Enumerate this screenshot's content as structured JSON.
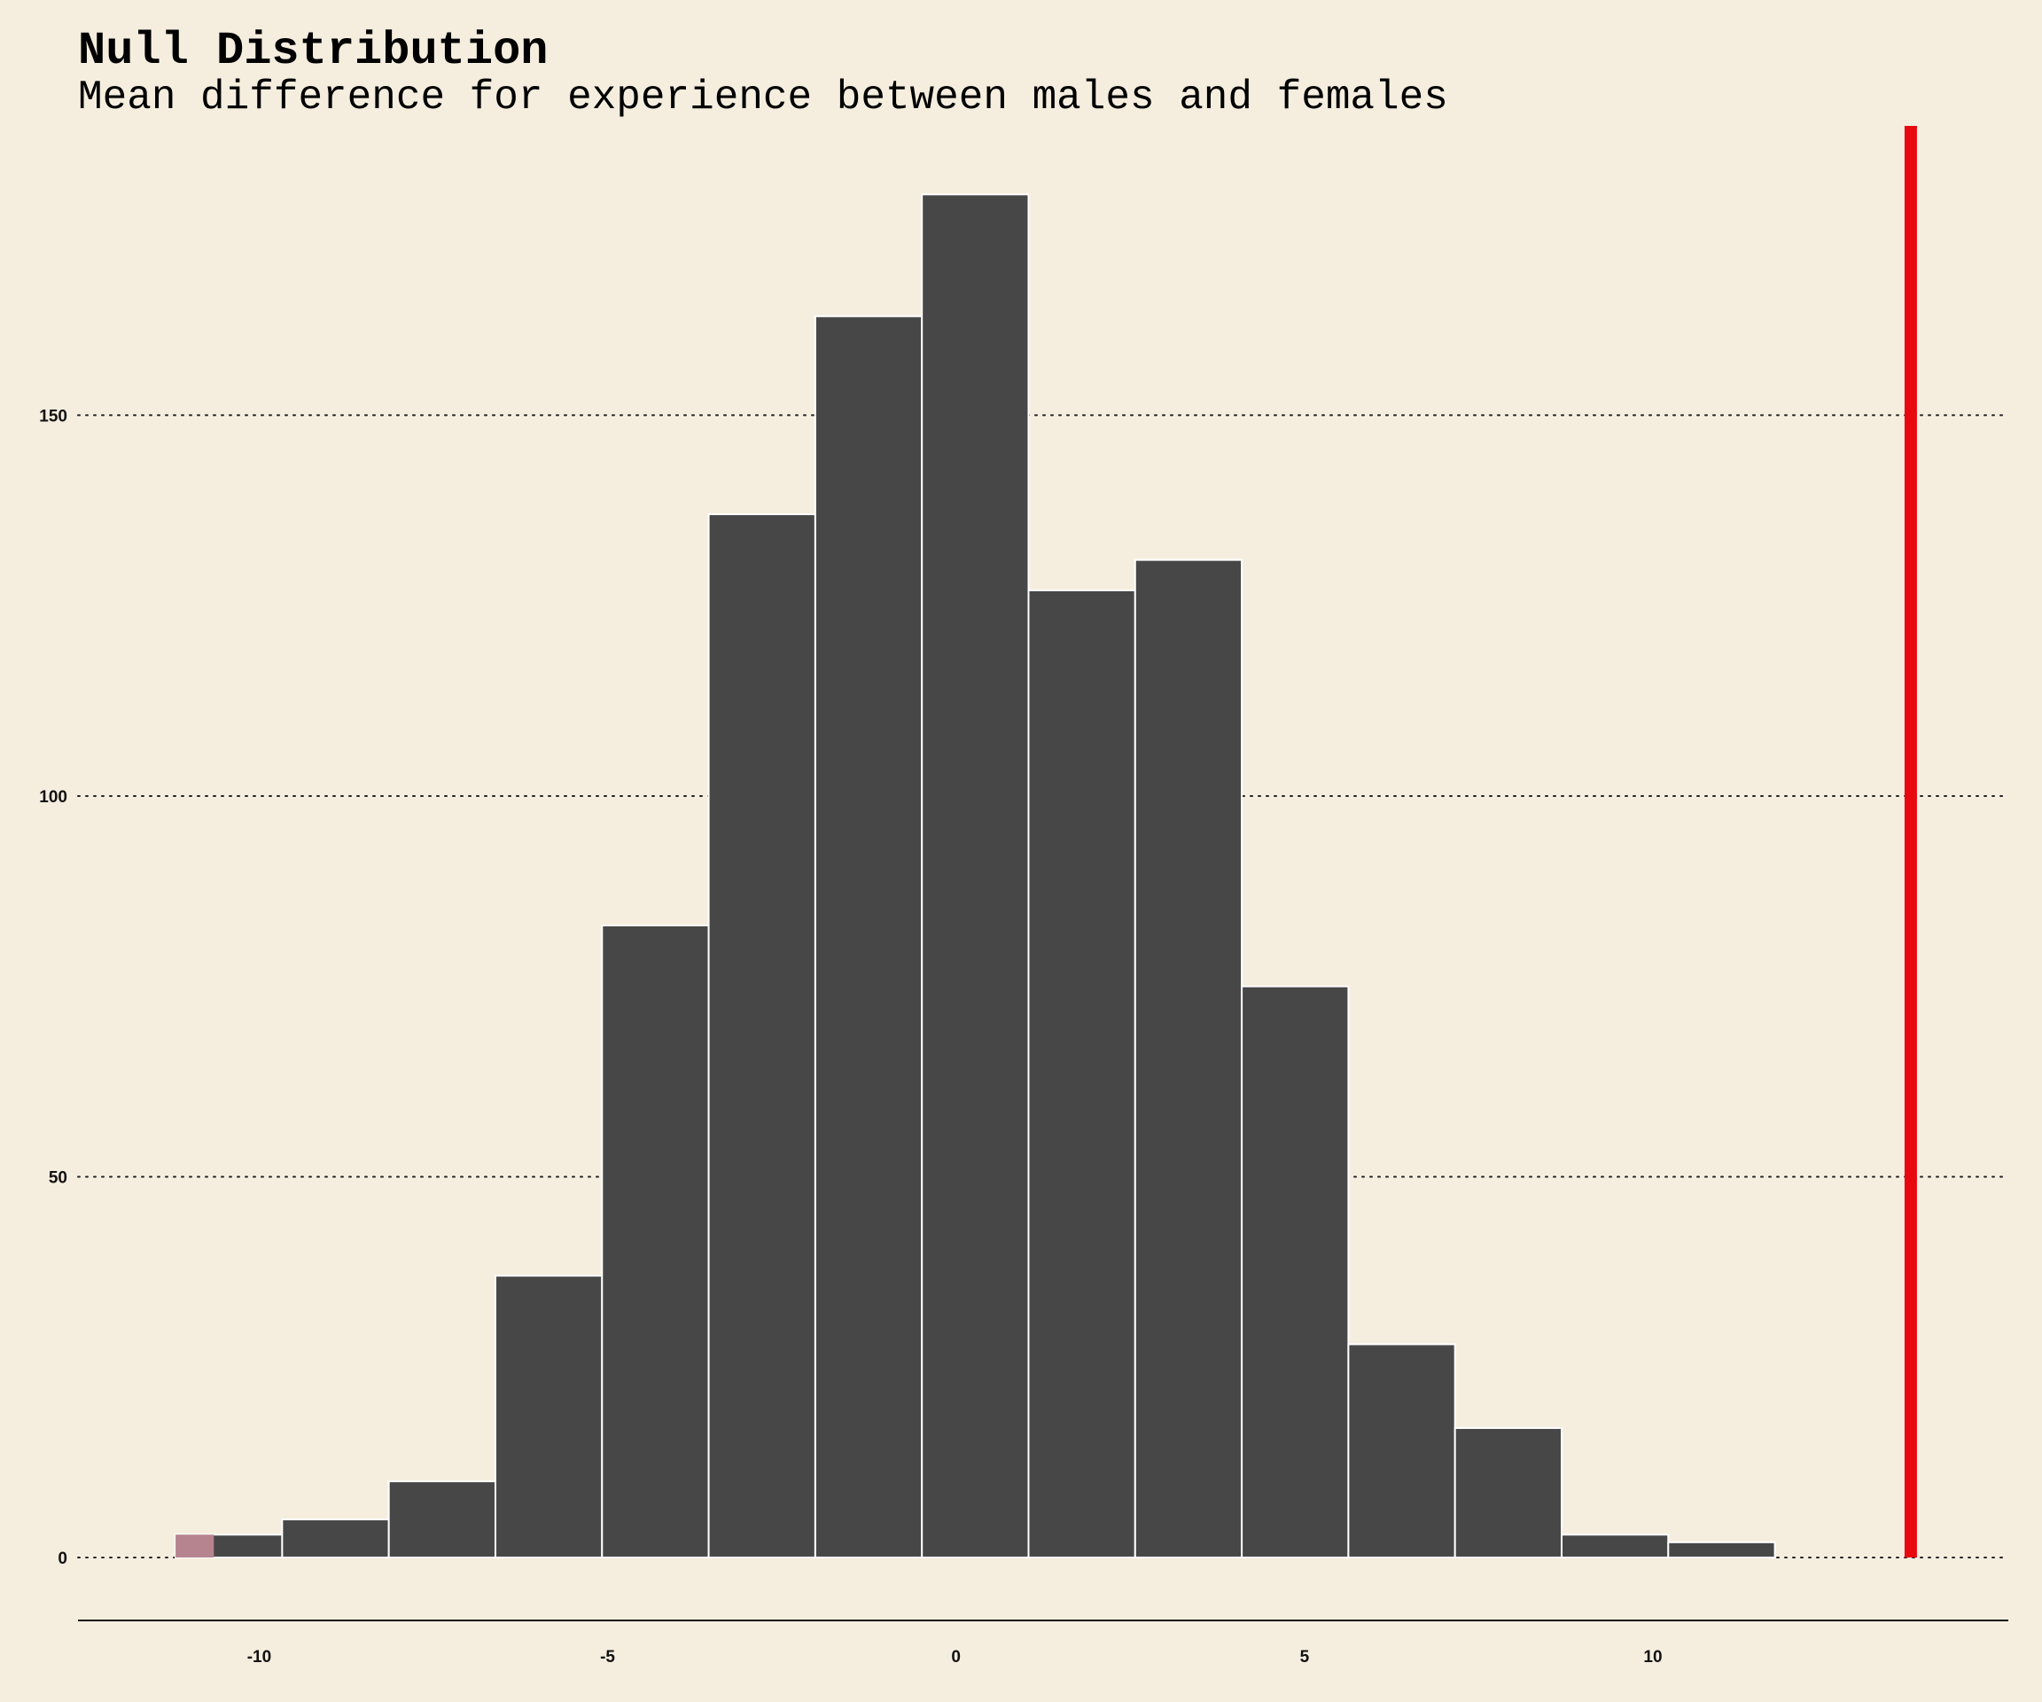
{
  "chart_data": {
    "type": "bar",
    "title": "Null Distribution",
    "subtitle": "Mean difference for experience between males and females",
    "xlabel": "",
    "ylabel": "",
    "xlim": [
      -12.6,
      15.1
    ],
    "ylim": [
      -8.5,
      188
    ],
    "grid": "horizontal dotted",
    "x_ticks": [
      -10,
      -5,
      0,
      5,
      10
    ],
    "x_tick_labels": [
      "-10",
      "-5",
      "0",
      "5",
      "10"
    ],
    "y_ticks": [
      0,
      50,
      100,
      150
    ],
    "y_tick_labels": [
      "0",
      "50",
      "100",
      "150"
    ],
    "bin_width": 1.53,
    "bins": [
      {
        "start": -11.2,
        "end": -9.67,
        "count": 3
      },
      {
        "start": -9.67,
        "end": -8.14,
        "count": 5
      },
      {
        "start": -8.14,
        "end": -6.61,
        "count": 10
      },
      {
        "start": -6.61,
        "end": -5.08,
        "count": 37
      },
      {
        "start": -5.08,
        "end": -3.55,
        "count": 83
      },
      {
        "start": -3.55,
        "end": -2.02,
        "count": 137
      },
      {
        "start": -2.02,
        "end": -0.49,
        "count": 163
      },
      {
        "start": -0.49,
        "end": 1.04,
        "count": 179
      },
      {
        "start": 1.04,
        "end": 2.57,
        "count": 127
      },
      {
        "start": 2.57,
        "end": 4.1,
        "count": 131
      },
      {
        "start": 4.1,
        "end": 5.63,
        "count": 75
      },
      {
        "start": 5.63,
        "end": 7.16,
        "count": 28
      },
      {
        "start": 7.16,
        "end": 8.69,
        "count": 17
      },
      {
        "start": 8.69,
        "end": 10.22,
        "count": 3
      },
      {
        "start": 10.22,
        "end": 11.75,
        "count": 2
      }
    ],
    "shaded_region": {
      "from": -11.2,
      "to": -10.65,
      "count": 3,
      "color": "#b5848f"
    },
    "observed_statistic": 13.7,
    "colors": {
      "background": "#f5eedf",
      "bar_fill": "#474747",
      "bar_stroke": "#ffffff",
      "observed_line": "#e8090f",
      "shade": "#b5848f",
      "grid": "#222222"
    }
  }
}
